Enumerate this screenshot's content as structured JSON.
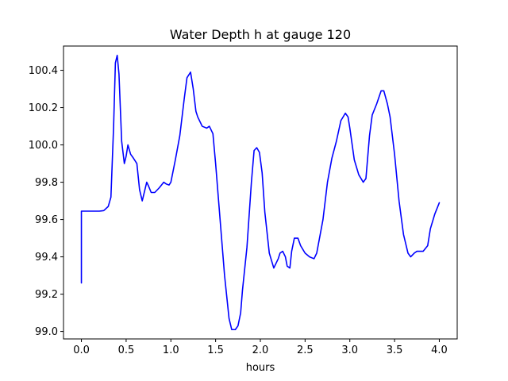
{
  "chart_data": {
    "type": "line",
    "title": "Water Depth h at gauge 120",
    "xlabel": "hours",
    "ylabel": "",
    "xlim": [
      -0.2,
      4.2
    ],
    "ylim": [
      98.96,
      100.53
    ],
    "grid": false,
    "x_ticks": [
      {
        "value": 0.0,
        "label": "0.0"
      },
      {
        "value": 0.5,
        "label": "0.5"
      },
      {
        "value": 1.0,
        "label": "1.0"
      },
      {
        "value": 1.5,
        "label": "1.5"
      },
      {
        "value": 2.0,
        "label": "2.0"
      },
      {
        "value": 2.5,
        "label": "2.5"
      },
      {
        "value": 3.0,
        "label": "3.0"
      },
      {
        "value": 3.5,
        "label": "3.5"
      },
      {
        "value": 4.0,
        "label": "4.0"
      }
    ],
    "y_ticks": [
      {
        "value": 99.0,
        "label": "99.0"
      },
      {
        "value": 99.2,
        "label": "99.2"
      },
      {
        "value": 99.4,
        "label": "99.4"
      },
      {
        "value": 99.6,
        "label": "99.6"
      },
      {
        "value": 99.8,
        "label": "99.8"
      },
      {
        "value": 100.0,
        "label": "100.0"
      },
      {
        "value": 100.2,
        "label": "100.2"
      },
      {
        "value": 100.4,
        "label": "100.4"
      }
    ],
    "series": [
      {
        "color": "#0000ff",
        "x": [
          0.0,
          0.0,
          0.1,
          0.2,
          0.25,
          0.3,
          0.33,
          0.36,
          0.38,
          0.4,
          0.42,
          0.45,
          0.48,
          0.5,
          0.52,
          0.55,
          0.58,
          0.62,
          0.65,
          0.68,
          0.7,
          0.73,
          0.75,
          0.78,
          0.82,
          0.87,
          0.92,
          0.95,
          0.98,
          1.0,
          1.05,
          1.1,
          1.15,
          1.18,
          1.22,
          1.25,
          1.28,
          1.3,
          1.35,
          1.4,
          1.43,
          1.47,
          1.5,
          1.55,
          1.6,
          1.65,
          1.68,
          1.72,
          1.75,
          1.78,
          1.8,
          1.85,
          1.9,
          1.93,
          1.96,
          1.99,
          2.02,
          2.05,
          2.1,
          2.15,
          2.2,
          2.22,
          2.25,
          2.28,
          2.3,
          2.33,
          2.35,
          2.38,
          2.42,
          2.45,
          2.5,
          2.55,
          2.6,
          2.63,
          2.7,
          2.75,
          2.8,
          2.85,
          2.9,
          2.95,
          2.98,
          3.0,
          3.05,
          3.1,
          3.15,
          3.18,
          3.22,
          3.25,
          3.3,
          3.35,
          3.38,
          3.42,
          3.45,
          3.5,
          3.55,
          3.6,
          3.65,
          3.68,
          3.72,
          3.75,
          3.78,
          3.82,
          3.87,
          3.9,
          3.95,
          4.0
        ],
        "y": [
          99.26,
          99.645,
          99.645,
          99.645,
          99.648,
          99.67,
          99.72,
          100.1,
          100.44,
          100.48,
          100.38,
          100.02,
          99.9,
          99.94,
          100.0,
          99.95,
          99.93,
          99.9,
          99.76,
          99.7,
          99.74,
          99.8,
          99.78,
          99.745,
          99.745,
          99.77,
          99.8,
          99.79,
          99.785,
          99.8,
          99.92,
          100.05,
          100.25,
          100.36,
          100.39,
          100.3,
          100.18,
          100.15,
          100.1,
          100.09,
          100.1,
          100.06,
          99.9,
          99.6,
          99.3,
          99.07,
          99.01,
          99.01,
          99.03,
          99.1,
          99.22,
          99.45,
          99.8,
          99.97,
          99.985,
          99.96,
          99.85,
          99.64,
          99.42,
          99.34,
          99.39,
          99.42,
          99.43,
          99.4,
          99.35,
          99.34,
          99.43,
          99.5,
          99.5,
          99.46,
          99.42,
          99.4,
          99.39,
          99.42,
          99.6,
          99.8,
          99.93,
          100.02,
          100.13,
          100.17,
          100.15,
          100.09,
          99.92,
          99.84,
          99.8,
          99.82,
          100.05,
          100.16,
          100.22,
          100.29,
          100.29,
          100.22,
          100.15,
          99.95,
          99.7,
          99.52,
          99.42,
          99.4,
          99.42,
          99.43,
          99.43,
          99.43,
          99.46,
          99.55,
          99.63,
          99.69
        ]
      }
    ]
  }
}
